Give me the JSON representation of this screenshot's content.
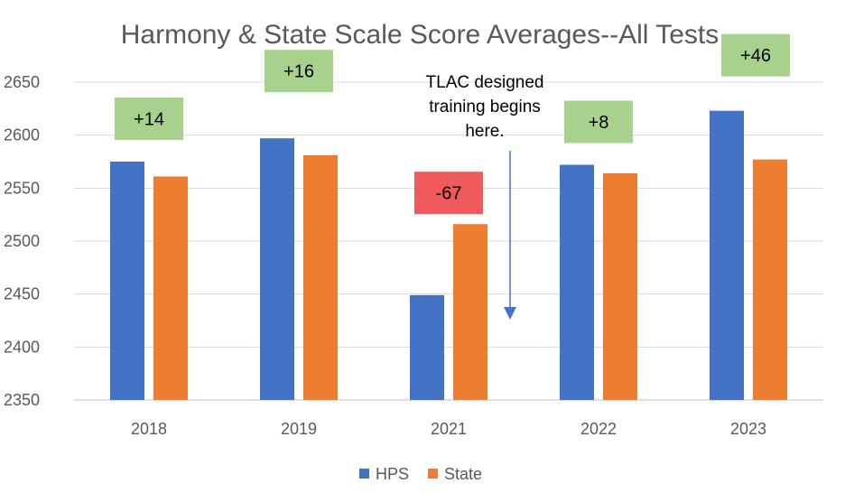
{
  "chart_data": {
    "type": "bar",
    "title": "Harmony & State Scale Score Averages--All Tests",
    "categories": [
      "2018",
      "2019",
      "2021",
      "2022",
      "2023"
    ],
    "series": [
      {
        "name": "HPS",
        "color": "#4472C4",
        "values": [
          2575,
          2597,
          2449,
          2572,
          2623
        ]
      },
      {
        "name": "State",
        "color": "#ED7D31",
        "values": [
          2561,
          2581,
          2516,
          2564,
          2577
        ]
      }
    ],
    "ylim": [
      2350,
      2650
    ],
    "yticks": [
      2350,
      2400,
      2450,
      2500,
      2550,
      2600,
      2650
    ],
    "grid": true,
    "legend": "bottom",
    "annotations": [
      {
        "category": "2018",
        "label": "+14",
        "color": "#A9D18E"
      },
      {
        "category": "2019",
        "label": "+16",
        "color": "#A9D18E"
      },
      {
        "category": "2021",
        "label": "-67",
        "color": "#F05A5A"
      },
      {
        "category": "2022",
        "label": "+8",
        "color": "#A9D18E"
      },
      {
        "category": "2023",
        "label": "+46",
        "color": "#A9D18E"
      }
    ],
    "note": {
      "lines": [
        "TLAC designed",
        "training begins",
        "here."
      ],
      "arrow_color": "#4472C4"
    }
  }
}
